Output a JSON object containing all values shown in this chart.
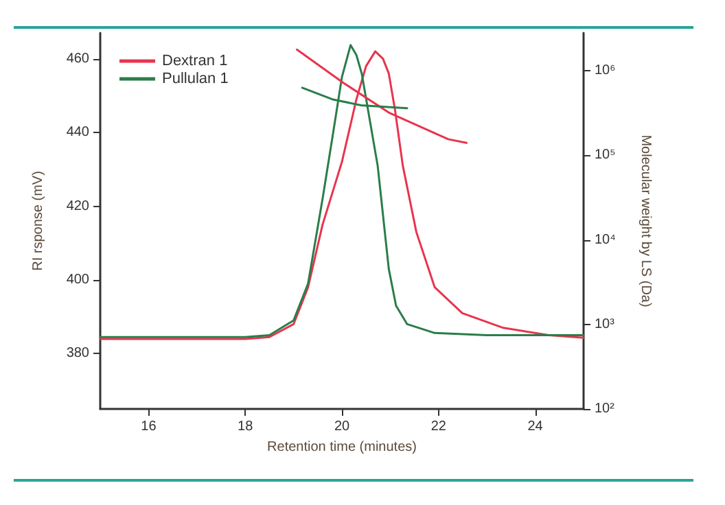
{
  "chart_data": {
    "type": "line",
    "xlabel": "Retention time (minutes)",
    "ylabel": "RI rsponse (mV)",
    "y2label": "Molecular weight by LS (Da)",
    "xlim": [
      15,
      25
    ],
    "xticks": [
      16,
      18,
      20,
      22,
      24
    ],
    "ylim": [
      365,
      467
    ],
    "yticks": [
      380,
      400,
      420,
      440,
      460
    ],
    "y2lim": [
      100,
      2800000
    ],
    "y2ticks": [
      {
        "value": 100,
        "label": "10²"
      },
      {
        "value": 1000,
        "label": "10³"
      },
      {
        "value": 10000,
        "label": "10⁴"
      },
      {
        "value": 100000,
        "label": "10⁵"
      },
      {
        "value": 1000000,
        "label": "10⁶"
      }
    ],
    "log": "y2",
    "grid": false,
    "legend": "top left",
    "marker": "none",
    "line_style": "solid",
    "series": [
      {
        "name": "Dextran 1",
        "color": "#e8344e",
        "x": [
          15,
          16,
          17,
          18,
          18.5,
          19,
          19.3,
          19.6,
          20,
          20.3,
          20.5,
          20.69,
          20.85,
          20.97,
          21.1,
          21.26,
          21.54,
          21.92,
          22.49,
          23.34,
          24.28,
          25
        ],
        "values": [
          384,
          384,
          384,
          384,
          384.5,
          388,
          398,
          415,
          432,
          449,
          458,
          462,
          460,
          456,
          446,
          431,
          413,
          398,
          391,
          387,
          385,
          384.3
        ]
      },
      {
        "name": "Pullulan 1",
        "color": "#2a7d4a",
        "x": [
          15,
          16,
          17,
          18,
          18.5,
          19,
          19.3,
          19.6,
          19.82,
          20,
          20.18,
          20.3,
          20.41,
          20.74,
          20.97,
          21.12,
          21.35,
          21.92,
          23,
          24,
          25
        ],
        "values": [
          384.5,
          384.5,
          384.5,
          384.5,
          385,
          389,
          399,
          422,
          440,
          455,
          463.7,
          461,
          456,
          431,
          403,
          393,
          388,
          385.6,
          385,
          385,
          385
        ]
      },
      {
        "color": "#e8344e",
        "axis": "y2",
        "x": [
          19.07,
          20.03,
          20.97,
          22.2,
          22.58
        ],
        "values": [
          1780000,
          720000,
          320000,
          155000,
          140000
        ]
      },
      {
        "color": "#2a7d4a",
        "axis": "y2",
        "x": [
          19.18,
          19.8,
          20.4,
          21.35
        ],
        "values": [
          630000,
          460000,
          390000,
          360000
        ]
      }
    ]
  }
}
